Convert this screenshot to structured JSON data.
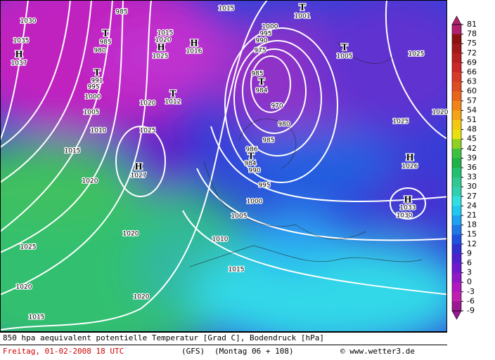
{
  "map": {
    "labels": [
      "H",
      "1030",
      "1035",
      "1037",
      "985",
      "1015",
      "T",
      "1001",
      "1000",
      "995",
      "990",
      "975",
      "T",
      "1005",
      "1025",
      "T",
      "985",
      "980",
      "1015",
      "1020",
      "H",
      "1025",
      "H",
      "1016",
      "T",
      "991",
      "995",
      "1000",
      "1005",
      "1010",
      "1015",
      "1020",
      "1025",
      "1020",
      "T",
      "1012",
      "985",
      "T",
      "984",
      "970",
      "980",
      "985",
      "986",
      "T",
      "984",
      "990",
      "995",
      "1000",
      "1005",
      "1010",
      "1015",
      "1020",
      "1025",
      "1020",
      "1020",
      "1015",
      "H",
      "1027",
      "1025",
      "H",
      "1026",
      "H",
      "1033",
      "1030",
      "1020"
    ],
    "colorbar": {
      "ticks": [
        81,
        78,
        75,
        72,
        69,
        66,
        63,
        60,
        57,
        54,
        51,
        48,
        45,
        42,
        39,
        36,
        33,
        30,
        27,
        24,
        21,
        18,
        15,
        12,
        9,
        6,
        3,
        0,
        -3,
        -6,
        -9
      ],
      "colors": [
        "#b0206e",
        "#8c1010",
        "#a01818",
        "#b82020",
        "#cc2828",
        "#d83a28",
        "#e04c22",
        "#e8661c",
        "#f08418",
        "#f4a414",
        "#f4c810",
        "#e8e010",
        "#90d020",
        "#40c040",
        "#20b048",
        "#20c070",
        "#30c890",
        "#30d0b0",
        "#30e0e0",
        "#20c8f0",
        "#20a0f0",
        "#2078e8",
        "#2050e0",
        "#3030d0",
        "#5020d0",
        "#7018d0",
        "#9018c8",
        "#b018c0",
        "#c020b0",
        "#9a1890"
      ]
    },
    "footer": {
      "line1": "850 hpa aequivalent potentielle Temperatur [Grad C], Bodendruck [hPa]",
      "date": "Freitag, 01-02-2008   18 UTC",
      "model": "(GFS)",
      "run": "(Montag 06 + 108)",
      "site": "© www.wetter3.de"
    }
  }
}
